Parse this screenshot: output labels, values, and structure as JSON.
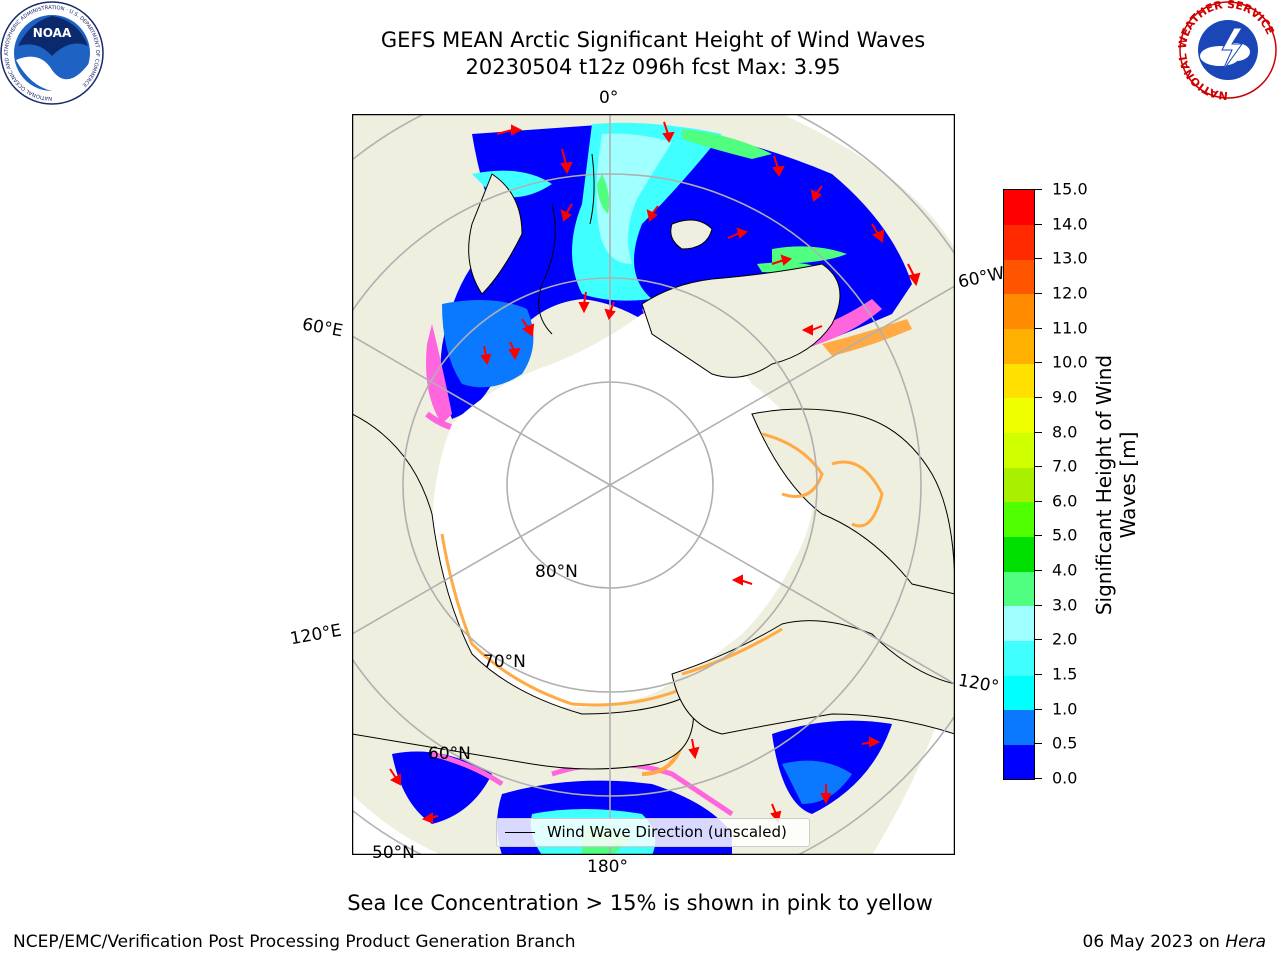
{
  "title_line1": "GEFS MEAN Arctic Significant Height of Wind Waves",
  "title_line2": "20230504 t12z 096h fcst   Max: 3.95",
  "logos": {
    "noaa": {
      "center": "NOAA",
      "ring": "NATIONAL OCEANIC AND ATMOSPHERIC ADMINISTRATION · U.S. DEPARTMENT OF COMMERCE"
    },
    "nws": {
      "ring": "NATIONAL WEATHER SERVICE"
    }
  },
  "map_labels": {
    "lon_0": "0°",
    "lon_60w": "60°W",
    "lon_60e": "60°E",
    "lon_120e": "120°E",
    "lon_120w": "120°",
    "lon_180": "180°",
    "lat_80": "80°N",
    "lat_70": "70°N",
    "lat_60": "60°N",
    "lat_50": "50°N"
  },
  "legend_label": "Wind Wave Direction (unscaled)",
  "colorbar": {
    "title_line1": "Significant Height of Wind",
    "title_line2": "Waves [m]",
    "ticks": [
      "0.0",
      "0.5",
      "1.0",
      "1.5",
      "2.0",
      "3.0",
      "4.0",
      "5.0",
      "6.0",
      "7.0",
      "8.0",
      "9.0",
      "10.0",
      "11.0",
      "12.0",
      "13.0",
      "14.0",
      "15.0"
    ],
    "colors": [
      "#0000ff",
      "#0a78ff",
      "#00ffff",
      "#40ffff",
      "#a0ffff",
      "#50ff80",
      "#00e000",
      "#50ff00",
      "#a8f000",
      "#d0ff00",
      "#f0ff00",
      "#ffe000",
      "#ffb000",
      "#ff8c00",
      "#ff5500",
      "#ff2a00",
      "#ff0000"
    ]
  },
  "colors": {
    "land": "#efefdf",
    "ice": "#ffffff",
    "grid": "#b0b0b0",
    "arrow": "#ff0000"
  },
  "ice_note": "Sea Ice Concentration > 15% is shown in pink to yellow",
  "footer_left": "NCEP/EMC/Verification Post Processing Product Generation Branch",
  "footer_date": "06 May 2023 on ",
  "footer_host": "Hera"
}
